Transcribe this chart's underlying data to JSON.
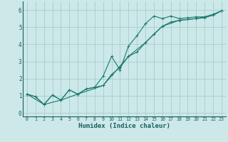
{
  "xlabel": "Humidex (Indice chaleur)",
  "background_color": "#cce8e8",
  "grid_color": "#aacccc",
  "line_color": "#1a7a6e",
  "xlim": [
    -0.5,
    23.5
  ],
  "ylim": [
    -0.2,
    6.5
  ],
  "xticks": [
    0,
    1,
    2,
    3,
    4,
    5,
    6,
    7,
    8,
    9,
    10,
    11,
    12,
    13,
    14,
    15,
    16,
    17,
    18,
    19,
    20,
    21,
    22,
    23
  ],
  "yticks": [
    0,
    1,
    2,
    3,
    4,
    5,
    6
  ],
  "series": [
    {
      "x": [
        0,
        1,
        2,
        3,
        4,
        5,
        6,
        7,
        8,
        9,
        10,
        11,
        12,
        13,
        14,
        15,
        16,
        17,
        18,
        19,
        20,
        21,
        22,
        23
      ],
      "y": [
        1.1,
        0.95,
        0.5,
        1.05,
        0.75,
        1.35,
        1.1,
        1.4,
        1.5,
        2.15,
        3.3,
        2.5,
        3.9,
        4.5,
        5.2,
        5.65,
        5.5,
        5.65,
        5.5,
        5.55,
        5.6,
        5.6,
        5.75,
        5.95
      ]
    },
    {
      "x": [
        0,
        1,
        2,
        3,
        4,
        5,
        6,
        7,
        8,
        9,
        10,
        11,
        12,
        13,
        14,
        15,
        16,
        17,
        18,
        19,
        20,
        21,
        22,
        23
      ],
      "y": [
        1.1,
        0.95,
        0.5,
        1.05,
        0.75,
        1.35,
        1.1,
        1.4,
        1.5,
        1.6,
        2.25,
        2.65,
        3.3,
        3.55,
        4.1,
        4.6,
        5.05,
        5.3,
        5.4,
        5.45,
        5.5,
        5.55,
        5.7,
        5.95
      ]
    },
    {
      "x": [
        0,
        2,
        4,
        6,
        9,
        12,
        14,
        16,
        18,
        20,
        22,
        23
      ],
      "y": [
        1.1,
        0.5,
        0.75,
        1.1,
        1.6,
        3.3,
        4.1,
        5.05,
        5.4,
        5.5,
        5.7,
        5.95
      ]
    }
  ]
}
